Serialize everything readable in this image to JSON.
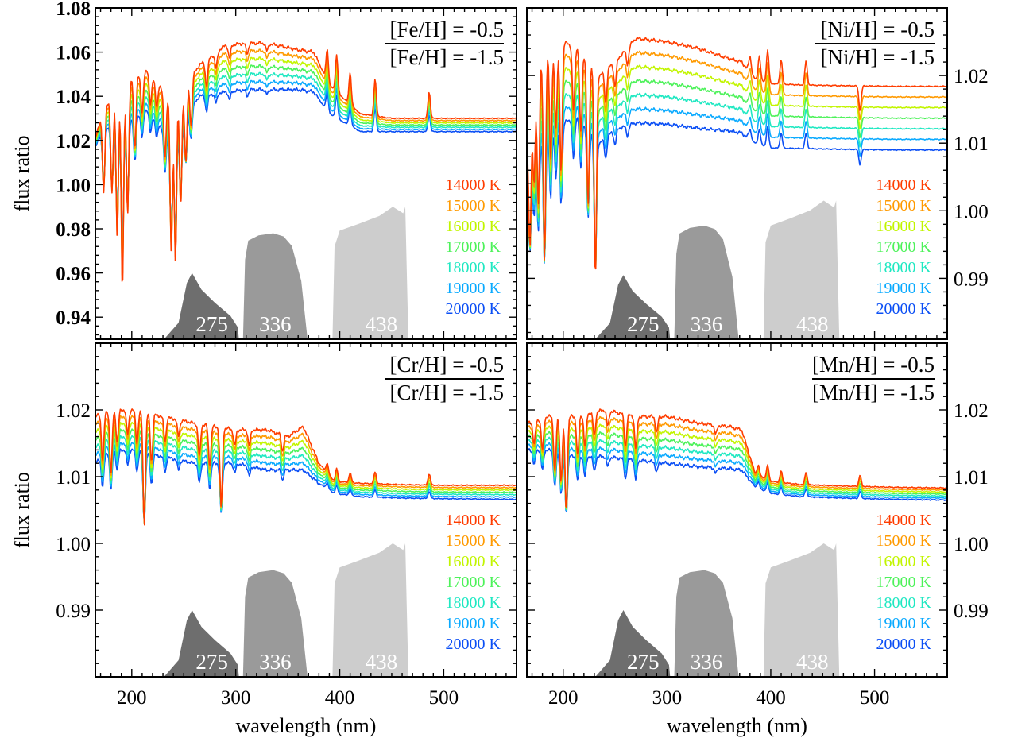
{
  "chart_data": [
    {
      "type": "line",
      "panel": "top-left",
      "ratio_top": "[Fe/H] = -0.5",
      "ratio_bottom": "[Fe/H] = -1.5",
      "xlabel": "",
      "ylabel": "flux ratio",
      "xlim": [
        165,
        570
      ],
      "ylim": [
        0.93,
        1.08
      ],
      "xticks": [],
      "yticks": [
        "0.94",
        "0.96",
        "0.98",
        "1.00",
        "1.02",
        "1.04",
        "1.06",
        "1.08"
      ],
      "ytick_side": "left",
      "ytick_bold": true,
      "shape": {
        "x": [
          165,
          175,
          185,
          200,
          215,
          235,
          250,
          265,
          290,
          310,
          330,
          360,
          375,
          390,
          420,
          450,
          500,
          540,
          570
        ],
        "y_lo": [
          1.018,
          1.025,
          1.028,
          1.03,
          1.034,
          1.022,
          1.03,
          1.04,
          1.042,
          1.043,
          1.043,
          1.043,
          1.042,
          1.032,
          1.024,
          1.024,
          1.024,
          1.024,
          1.024
        ],
        "y_hi": [
          1.022,
          1.035,
          1.042,
          1.048,
          1.052,
          1.04,
          1.044,
          1.054,
          1.063,
          1.064,
          1.064,
          1.061,
          1.06,
          1.045,
          1.032,
          1.03,
          1.03,
          1.03,
          1.03
        ]
      },
      "spikes": [
        {
          "x": 173,
          "d": -0.03
        },
        {
          "x": 181,
          "d": -0.036
        },
        {
          "x": 186,
          "d": -0.055
        },
        {
          "x": 191,
          "d": -0.078
        },
        {
          "x": 196,
          "d": -0.05
        },
        {
          "x": 203,
          "d": -0.028
        },
        {
          "x": 210,
          "d": -0.015
        },
        {
          "x": 218,
          "d": -0.012
        },
        {
          "x": 224,
          "d": -0.01
        },
        {
          "x": 232,
          "d": -0.025
        },
        {
          "x": 238,
          "d": -0.06
        },
        {
          "x": 242,
          "d": -0.064
        },
        {
          "x": 247,
          "d": -0.045
        },
        {
          "x": 252,
          "d": -0.03
        },
        {
          "x": 257,
          "d": -0.018
        },
        {
          "x": 272,
          "d": -0.01
        },
        {
          "x": 281,
          "d": -0.006
        },
        {
          "x": 294,
          "d": -0.005
        },
        {
          "x": 311,
          "d": -0.004
        },
        {
          "x": 330,
          "d": -0.003
        },
        {
          "x": 388,
          "d": 0.012
        },
        {
          "x": 397,
          "d": 0.014
        },
        {
          "x": 410,
          "d": 0.012
        },
        {
          "x": 434,
          "d": 0.014
        },
        {
          "x": 486,
          "d": 0.01
        }
      ],
      "filters": [
        {
          "label": "275",
          "center": 275,
          "peak": 0.96,
          "fill": "#6e6e6e"
        },
        {
          "label": "336",
          "center": 336,
          "peak": 0.978,
          "fill": "#9a9a9a"
        },
        {
          "label": "438",
          "center": 438,
          "peak": 0.99,
          "fill": "#cdcdcd"
        }
      ]
    },
    {
      "type": "line",
      "panel": "top-right",
      "ratio_top": "[Ni/H] = -0.5",
      "ratio_bottom": "[Ni/H] = -1.5",
      "xlabel": "",
      "ylabel": "",
      "xlim": [
        165,
        570
      ],
      "ylim": [
        0.981,
        1.03
      ],
      "xticks": [],
      "yticks": [
        "0.99",
        "1.00",
        "1.01",
        "1.02"
      ],
      "ytick_side": "right",
      "ytick_bold": false,
      "shape": {
        "x": [
          165,
          175,
          185,
          200,
          215,
          235,
          250,
          270,
          300,
          330,
          360,
          372,
          385,
          400,
          430,
          470,
          520,
          570
        ],
        "y_lo": [
          1.004,
          1.01,
          1.012,
          1.013,
          1.014,
          1.01,
          1.012,
          1.013,
          1.0128,
          1.0122,
          1.0118,
          1.0115,
          1.01,
          1.0093,
          1.0092,
          1.0091,
          1.009,
          1.009
        ],
        "y_hi": [
          1.01,
          1.022,
          1.024,
          1.025,
          1.024,
          1.02,
          1.022,
          1.0255,
          1.025,
          1.024,
          1.0225,
          1.022,
          1.0195,
          1.0188,
          1.0186,
          1.0185,
          1.0184,
          1.0184
        ]
      },
      "spikes": [
        {
          "x": 168,
          "d": -0.016
        },
        {
          "x": 172,
          "d": -0.012
        },
        {
          "x": 176,
          "d": -0.018
        },
        {
          "x": 182,
          "d": -0.026
        },
        {
          "x": 188,
          "d": -0.014
        },
        {
          "x": 193,
          "d": -0.01
        },
        {
          "x": 198,
          "d": -0.016
        },
        {
          "x": 210,
          "d": -0.008
        },
        {
          "x": 217,
          "d": -0.01
        },
        {
          "x": 224,
          "d": -0.018
        },
        {
          "x": 231,
          "d": -0.026
        },
        {
          "x": 241,
          "d": -0.004
        },
        {
          "x": 250,
          "d": -0.003
        },
        {
          "x": 262,
          "d": -0.002
        },
        {
          "x": 380,
          "d": 0.002
        },
        {
          "x": 389,
          "d": 0.003
        },
        {
          "x": 397,
          "d": 0.004
        },
        {
          "x": 410,
          "d": 0.003
        },
        {
          "x": 434,
          "d": 0.003
        },
        {
          "x": 486,
          "d": -0.003
        }
      ],
      "filters": [
        {
          "label": "275",
          "center": 275,
          "peak": 0.9905,
          "fill": "#6e6e6e"
        },
        {
          "label": "336",
          "center": 336,
          "peak": 0.9978,
          "fill": "#9a9a9a"
        },
        {
          "label": "438",
          "center": 438,
          "peak": 1.0015,
          "fill": "#cdcdcd"
        }
      ]
    },
    {
      "type": "line",
      "panel": "bottom-left",
      "ratio_top": "[Cr/H] = -0.5",
      "ratio_bottom": "[Cr/H] = -1.5",
      "xlabel": "wavelength (nm)",
      "ylabel": "flux ratio",
      "xlim": [
        165,
        570
      ],
      "ylim": [
        0.98,
        1.03
      ],
      "xticks": [
        "200",
        "300",
        "400",
        "500"
      ],
      "yticks": [
        "0.99",
        "1.00",
        "1.01",
        "1.02"
      ],
      "ytick_side": "left",
      "ytick_bold": false,
      "shape": {
        "x": [
          165,
          180,
          200,
          230,
          260,
          300,
          330,
          350,
          365,
          380,
          395,
          420,
          460,
          500,
          570
        ],
        "y_lo": [
          1.012,
          1.014,
          1.014,
          1.013,
          1.012,
          1.012,
          1.011,
          1.011,
          1.011,
          1.009,
          1.0075,
          1.007,
          1.0068,
          1.0067,
          1.0066
        ],
        "y_hi": [
          1.019,
          1.02,
          1.02,
          1.019,
          1.018,
          1.017,
          1.017,
          1.016,
          1.0175,
          1.012,
          1.0093,
          1.009,
          1.0088,
          1.0087,
          1.0087
        ]
      },
      "spikes": [
        {
          "x": 172,
          "d": -0.006
        },
        {
          "x": 180,
          "d": -0.008
        },
        {
          "x": 186,
          "d": -0.004
        },
        {
          "x": 196,
          "d": -0.003
        },
        {
          "x": 205,
          "d": -0.004
        },
        {
          "x": 212,
          "d": -0.014
        },
        {
          "x": 219,
          "d": -0.006
        },
        {
          "x": 232,
          "d": -0.003
        },
        {
          "x": 245,
          "d": -0.002
        },
        {
          "x": 265,
          "d": -0.004
        },
        {
          "x": 275,
          "d": -0.005
        },
        {
          "x": 286,
          "d": -0.01
        },
        {
          "x": 299,
          "d": -0.002
        },
        {
          "x": 313,
          "d": -0.002
        },
        {
          "x": 345,
          "d": -0.002
        },
        {
          "x": 388,
          "d": 0.0012
        },
        {
          "x": 397,
          "d": 0.0016
        },
        {
          "x": 410,
          "d": 0.0012
        },
        {
          "x": 434,
          "d": 0.0015
        },
        {
          "x": 486,
          "d": 0.0014
        }
      ],
      "filters": [
        {
          "label": "275",
          "center": 275,
          "peak": 0.99,
          "fill": "#6e6e6e"
        },
        {
          "label": "336",
          "center": 336,
          "peak": 0.996,
          "fill": "#9a9a9a"
        },
        {
          "label": "438",
          "center": 438,
          "peak": 1.0,
          "fill": "#cdcdcd"
        }
      ]
    },
    {
      "type": "line",
      "panel": "bottom-right",
      "ratio_top": "[Mn/H] = -0.5",
      "ratio_bottom": "[Mn/H] = -1.5",
      "xlabel": "wavelength (nm)",
      "ylabel": "",
      "xlim": [
        165,
        570
      ],
      "ylim": [
        0.98,
        1.03
      ],
      "xticks": [
        "200",
        "300",
        "400",
        "500"
      ],
      "yticks": [
        "0.99",
        "1.00",
        "1.01",
        "1.02"
      ],
      "ytick_side": "right",
      "ytick_bold": false,
      "shape": {
        "x": [
          165,
          185,
          210,
          240,
          270,
          300,
          330,
          360,
          372,
          385,
          400,
          430,
          470,
          520,
          570
        ],
        "y_lo": [
          1.014,
          1.014,
          1.013,
          1.013,
          1.0125,
          1.012,
          1.0115,
          1.0112,
          1.011,
          1.0085,
          1.0075,
          1.007,
          1.0068,
          1.0066,
          1.0065
        ],
        "y_hi": [
          1.018,
          1.019,
          1.019,
          1.02,
          1.019,
          1.019,
          1.018,
          1.0175,
          1.017,
          1.0105,
          1.0093,
          1.0088,
          1.0086,
          1.0084,
          1.0083
        ]
      },
      "spikes": [
        {
          "x": 172,
          "d": -0.003
        },
        {
          "x": 180,
          "d": -0.004
        },
        {
          "x": 192,
          "d": -0.007
        },
        {
          "x": 198,
          "d": -0.008
        },
        {
          "x": 203,
          "d": -0.012
        },
        {
          "x": 214,
          "d": -0.005
        },
        {
          "x": 221,
          "d": -0.004
        },
        {
          "x": 230,
          "d": -0.003
        },
        {
          "x": 243,
          "d": -0.002
        },
        {
          "x": 260,
          "d": -0.004
        },
        {
          "x": 270,
          "d": -0.004
        },
        {
          "x": 290,
          "d": -0.002
        },
        {
          "x": 347,
          "d": -0.0012
        },
        {
          "x": 388,
          "d": 0.0012
        },
        {
          "x": 397,
          "d": 0.0018
        },
        {
          "x": 410,
          "d": 0.0014
        },
        {
          "x": 434,
          "d": 0.0016
        },
        {
          "x": 486,
          "d": 0.0014
        }
      ],
      "filters": [
        {
          "label": "275",
          "center": 275,
          "peak": 0.99,
          "fill": "#6e6e6e"
        },
        {
          "label": "336",
          "center": 336,
          "peak": 0.996,
          "fill": "#9a9a9a"
        },
        {
          "label": "438",
          "center": 438,
          "peak": 1.0,
          "fill": "#cdcdcd"
        }
      ]
    }
  ],
  "series": [
    {
      "name": "14000 K",
      "color": "#ff3d00"
    },
    {
      "name": "15000 K",
      "color": "#ff9a00"
    },
    {
      "name": "16000 K",
      "color": "#c2f500"
    },
    {
      "name": "17000 K",
      "color": "#4df25a"
    },
    {
      "name": "18000 K",
      "color": "#1fe8c2"
    },
    {
      "name": "19000 K",
      "color": "#0aaaff"
    },
    {
      "name": "20000 K",
      "color": "#0b4ff5"
    }
  ]
}
